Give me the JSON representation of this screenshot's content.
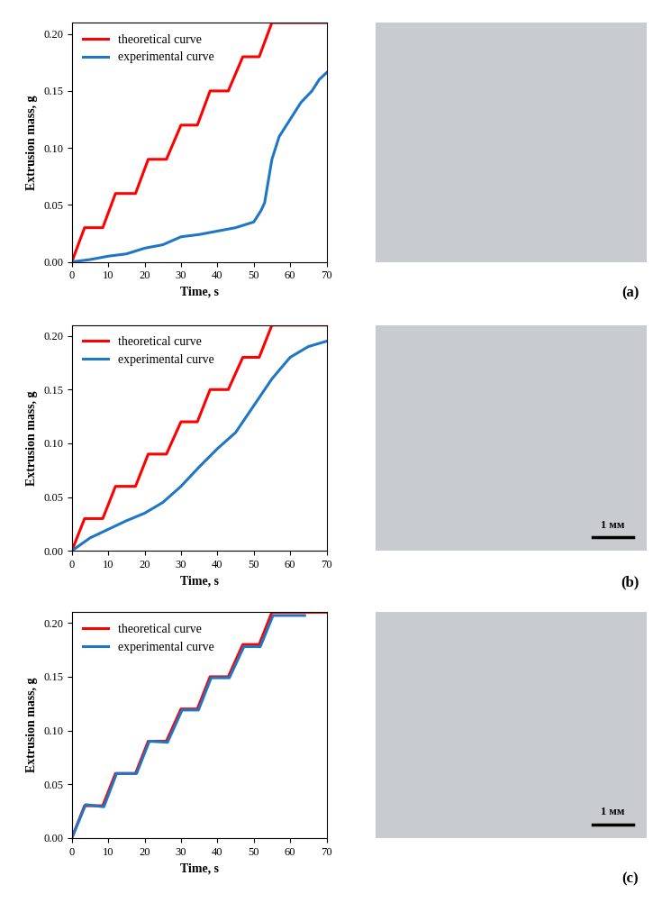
{
  "chart_data": [
    {
      "type": "line",
      "label": "(a)",
      "x_label": "Time, s",
      "y_label": "Extrusion mass, g",
      "xlim": [
        0,
        70
      ],
      "xticks": [
        0,
        10,
        20,
        30,
        40,
        50,
        60,
        70
      ],
      "ylim": [
        0,
        0.21
      ],
      "yticks": [
        {
          "value": 0,
          "label": "0.00"
        },
        {
          "value": 0.05,
          "label": "0.05"
        },
        {
          "value": 0.1,
          "label": "0.10"
        },
        {
          "value": 0.15,
          "label": "0.15"
        },
        {
          "value": 0.2,
          "label": "0.20"
        }
      ],
      "legend": "upper left",
      "grid": false,
      "series": [
        {
          "name": "theoretical curve",
          "color": "#ff0000",
          "x": [
            0,
            3.5,
            8.5,
            12,
            17.5,
            21,
            26,
            30,
            34.5,
            38,
            43,
            47,
            51.5,
            55,
            70
          ],
          "values": [
            0,
            0.03,
            0.03,
            0.06,
            0.06,
            0.09,
            0.09,
            0.12,
            0.12,
            0.15,
            0.15,
            0.18,
            0.18,
            0.21,
            0.21
          ]
        },
        {
          "name": "experimental curve",
          "color": "#1f77c4",
          "x": [
            0,
            5,
            10,
            15,
            20,
            25,
            30,
            35,
            40,
            45,
            50,
            52,
            53,
            55,
            57,
            60,
            63,
            66,
            68,
            70
          ],
          "values": [
            0,
            0.002,
            0.005,
            0.007,
            0.012,
            0.015,
            0.022,
            0.024,
            0.027,
            0.03,
            0.035,
            0.045,
            0.052,
            0.09,
            0.11,
            0.125,
            0.14,
            0.15,
            0.16,
            0.166
          ]
        }
      ]
    },
    {
      "type": "line",
      "label": "(b)",
      "x_label": "Time, s",
      "y_label": "Extrusion mass, g",
      "scale_bar_label": "1 мм",
      "xlim": [
        0,
        70
      ],
      "xticks": [
        0,
        10,
        20,
        30,
        40,
        50,
        60,
        70
      ],
      "ylim": [
        0,
        0.21
      ],
      "yticks": [
        {
          "value": 0,
          "label": "0.00"
        },
        {
          "value": 0.05,
          "label": "0.05"
        },
        {
          "value": 0.1,
          "label": "0.10"
        },
        {
          "value": 0.15,
          "label": "0.15"
        },
        {
          "value": 0.2,
          "label": "0.20"
        }
      ],
      "legend": "upper left",
      "grid": false,
      "series": [
        {
          "name": "theoretical curve",
          "color": "#ff0000",
          "x": [
            0,
            3.5,
            8.5,
            12,
            17.5,
            21,
            26,
            30,
            34.5,
            38,
            43,
            47,
            51.5,
            55,
            70
          ],
          "values": [
            0,
            0.03,
            0.03,
            0.06,
            0.06,
            0.09,
            0.09,
            0.12,
            0.12,
            0.15,
            0.15,
            0.18,
            0.18,
            0.21,
            0.21
          ]
        },
        {
          "name": "experimental curve",
          "color": "#1f77c4",
          "x": [
            0,
            5,
            10,
            15,
            20,
            25,
            30,
            35,
            40,
            45,
            50,
            55,
            60,
            65,
            70
          ],
          "values": [
            0,
            0.012,
            0.02,
            0.028,
            0.035,
            0.045,
            0.06,
            0.078,
            0.095,
            0.11,
            0.135,
            0.16,
            0.18,
            0.19,
            0.195
          ]
        }
      ]
    },
    {
      "type": "line",
      "label": "(c)",
      "x_label": "Time, s",
      "y_label": "Extrusion mass, g",
      "scale_bar_label": "1 мм",
      "xlim": [
        0,
        70
      ],
      "xticks": [
        0,
        10,
        20,
        30,
        40,
        50,
        60,
        70
      ],
      "ylim": [
        0,
        0.21
      ],
      "yticks": [
        {
          "value": 0,
          "label": "0.00"
        },
        {
          "value": 0.05,
          "label": "0.05"
        },
        {
          "value": 0.1,
          "label": "0.10"
        },
        {
          "value": 0.15,
          "label": "0.15"
        },
        {
          "value": 0.2,
          "label": "0.20"
        }
      ],
      "legend": "upper left",
      "grid": false,
      "series": [
        {
          "name": "theoretical curve",
          "color": "#ff0000",
          "x": [
            0,
            3.5,
            8.5,
            12,
            17.5,
            21,
            26,
            30,
            34.5,
            38,
            43,
            47,
            51.5,
            55,
            70
          ],
          "values": [
            0,
            0.03,
            0.03,
            0.06,
            0.06,
            0.09,
            0.09,
            0.12,
            0.12,
            0.15,
            0.15,
            0.18,
            0.18,
            0.21,
            0.21
          ]
        },
        {
          "name": "experimental curve",
          "color": "#1f77c4",
          "x": [
            0,
            3.8,
            8.8,
            12.3,
            17.8,
            21.3,
            26.3,
            30.3,
            34.8,
            38.3,
            43.3,
            47.3,
            51.8,
            55.3,
            64
          ],
          "values": [
            0,
            0.031,
            0.029,
            0.06,
            0.06,
            0.09,
            0.089,
            0.119,
            0.119,
            0.149,
            0.149,
            0.178,
            0.178,
            0.207,
            0.207
          ]
        }
      ]
    }
  ]
}
